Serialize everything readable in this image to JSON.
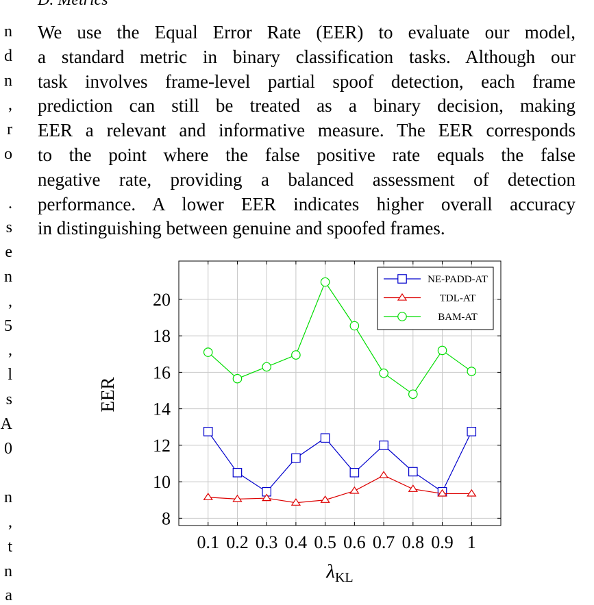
{
  "section": {
    "heading": "D.  Metrics"
  },
  "left_column_fragments": [
    {
      "text": "n",
      "row": 0
    },
    {
      "text": "d",
      "row": 1
    },
    {
      "text": "n",
      "row": 2
    },
    {
      "text": ",",
      "row": 3
    },
    {
      "text": "r",
      "row": 4
    },
    {
      "text": "o",
      "row": 5
    },
    {
      "text": ".",
      "row": 7
    },
    {
      "text": "s",
      "row": 8
    },
    {
      "text": "e",
      "row": 9
    },
    {
      "text": "n",
      "row": 10
    },
    {
      "text": ",",
      "row": 11
    },
    {
      "text": "5",
      "row": 12
    },
    {
      "text": ",",
      "row": 13
    },
    {
      "text": "l",
      "row": 14
    },
    {
      "text": "s",
      "row": 15
    },
    {
      "text": "A",
      "row": 16
    },
    {
      "text": "0",
      "row": 17
    },
    {
      "text": "n",
      "row": 19
    },
    {
      "text": ",",
      "row": 20
    },
    {
      "text": "t",
      "row": 21
    },
    {
      "text": "n",
      "row": 22
    },
    {
      "text": "a",
      "row": 23
    }
  ],
  "paragraph_lines": [
    "We use the Equal Error Rate (EER) to evaluate our model,",
    "a standard metric in binary classification tasks. Although our",
    "task involves frame-level partial spoof detection, each frame",
    "prediction can still be treated as a binary decision, making",
    "EER a relevant and informative measure. The EER corresponds",
    "to the point where the false positive rate equals the false",
    "negative rate, providing a balanced assessment of detection",
    "performance. A lower EER indicates higher overall accuracy",
    "in distinguishing between genuine and spoofed frames."
  ],
  "chart_data": {
    "type": "line",
    "x": [
      0.1,
      0.2,
      0.3,
      0.4,
      0.5,
      0.6,
      0.7,
      0.8,
      0.9,
      1
    ],
    "x_tick_labels": [
      "0.1",
      "0.2",
      "0.3",
      "0.4",
      "0.5",
      "0.6",
      "0.7",
      "0.8",
      "0.9",
      "1"
    ],
    "y_ticks": [
      8,
      10,
      12,
      14,
      16,
      18,
      20
    ],
    "ylim": [
      7.6,
      22.1
    ],
    "xlabel": "λ",
    "xlabel_subscript": "KL",
    "ylabel": "EER",
    "grid": true,
    "legend_position": "top-right",
    "series": [
      {
        "name": "NE-PADD-AT",
        "color": "#0000cc",
        "marker": "square",
        "values": [
          12.75,
          10.5,
          9.45,
          11.3,
          12.4,
          10.5,
          12.0,
          10.55,
          9.45,
          12.75
        ]
      },
      {
        "name": "TDL-AT",
        "color": "#dd0000",
        "marker": "triangle",
        "values": [
          9.15,
          9.05,
          9.1,
          8.85,
          9.0,
          9.5,
          10.35,
          9.6,
          9.35,
          9.35
        ]
      },
      {
        "name": "BAM-AT",
        "color": "#00dd00",
        "marker": "circle",
        "values": [
          17.1,
          15.65,
          16.3,
          16.95,
          20.95,
          18.55,
          15.95,
          14.8,
          17.2,
          16.05
        ]
      }
    ]
  }
}
